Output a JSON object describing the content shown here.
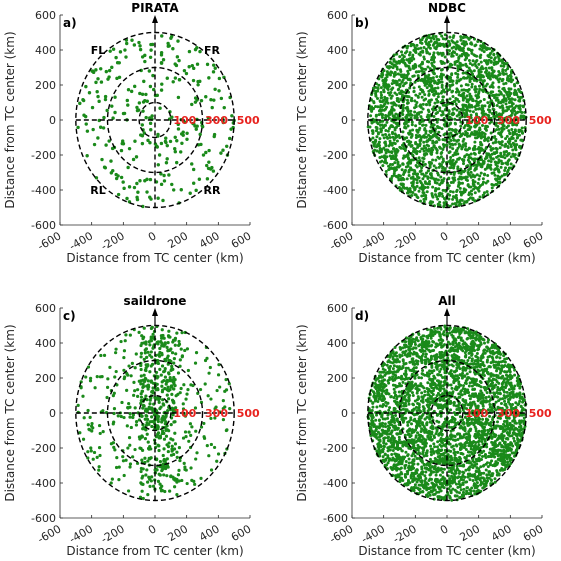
{
  "chart_data": [
    {
      "type": "scatter",
      "panel_label": "a)",
      "title": "PIRATA",
      "xlabel": "Distance from TC center (km)",
      "ylabel": "Distance from TC center (km)",
      "xlim": [
        -600,
        600
      ],
      "ylim": [
        -600,
        600
      ],
      "xticks": [
        -600,
        -400,
        -200,
        0,
        200,
        400,
        600
      ],
      "yticks": [
        -600,
        -400,
        -200,
        0,
        200,
        400,
        600
      ],
      "tick_labels_x": [
        "-600",
        "-400",
        "-200",
        "0",
        "200",
        "400",
        "600"
      ],
      "tick_labels_y": [
        "-600",
        "-400",
        "-200",
        "0",
        "200",
        "400",
        "600"
      ],
      "grid": false,
      "rings_km": [
        100,
        300,
        500
      ],
      "ring_labels": [
        "100",
        "300",
        "500"
      ],
      "quadrant_labels": [
        "FL",
        "FR",
        "RL",
        "RR"
      ],
      "series": [
        {
          "point_count": 300,
          "color": "#1a8a1a"
        }
      ]
    },
    {
      "type": "scatter",
      "panel_label": "b)",
      "title": "NDBC",
      "xlabel": "Distance from TC center (km)",
      "ylabel": "Distance from TC center (km)",
      "xlim": [
        -600,
        600
      ],
      "ylim": [
        -600,
        600
      ],
      "xticks": [
        -600,
        -400,
        -200,
        0,
        200,
        400,
        600
      ],
      "yticks": [
        -600,
        -400,
        -200,
        0,
        200,
        400,
        600
      ],
      "tick_labels_x": [
        "-600",
        "-400",
        "-200",
        "0",
        "200",
        "400",
        "600"
      ],
      "tick_labels_y": [
        "-600",
        "-400",
        "-200",
        "0",
        "200",
        "400",
        "600"
      ],
      "grid": false,
      "rings_km": [
        100,
        300,
        500
      ],
      "ring_labels": [
        "100",
        "300",
        "500"
      ],
      "quadrant_labels": [],
      "series": [
        {
          "point_count": 2600,
          "color": "#1a8a1a"
        }
      ]
    },
    {
      "type": "scatter",
      "panel_label": "c)",
      "title": "saildrone",
      "xlabel": "Distance from TC center (km)",
      "ylabel": "Distance from TC center (km)",
      "xlim": [
        -600,
        600
      ],
      "ylim": [
        -600,
        600
      ],
      "xticks": [
        -600,
        -400,
        -200,
        0,
        200,
        400,
        600
      ],
      "yticks": [
        -600,
        -400,
        -200,
        0,
        200,
        400,
        600
      ],
      "tick_labels_x": [
        "-600",
        "-400",
        "-200",
        "0",
        "200",
        "400",
        "600"
      ],
      "tick_labels_y": [
        "-600",
        "-400",
        "-200",
        "0",
        "200",
        "400",
        "600"
      ],
      "grid": false,
      "rings_km": [
        100,
        300,
        500
      ],
      "ring_labels": [
        "100",
        "300",
        "500"
      ],
      "quadrant_labels": [],
      "series": [
        {
          "point_count": 700,
          "color": "#1a8a1a"
        }
      ]
    },
    {
      "type": "scatter",
      "panel_label": "d)",
      "title": "All",
      "xlabel": "Distance from TC center (km)",
      "ylabel": "Distance from TC center (km)",
      "xlim": [
        -600,
        600
      ],
      "ylim": [
        -600,
        600
      ],
      "xticks": [
        -600,
        -400,
        -200,
        0,
        200,
        400,
        600
      ],
      "yticks": [
        -600,
        -400,
        -200,
        0,
        200,
        400,
        600
      ],
      "tick_labels_x": [
        "-600",
        "-400",
        "-200",
        "0",
        "200",
        "400",
        "600"
      ],
      "tick_labels_y": [
        "-600",
        "-400",
        "-200",
        "0",
        "200",
        "400",
        "600"
      ],
      "grid": false,
      "rings_km": [
        100,
        300,
        500
      ],
      "ring_labels": [
        "100",
        "300",
        "500"
      ],
      "quadrant_labels": [],
      "series": [
        {
          "point_count": 3400,
          "color": "#1a8a1a"
        }
      ]
    }
  ],
  "colors": {
    "points": "#1a8a1a",
    "ring_labels": "#e8231f",
    "rings": "#000000"
  }
}
